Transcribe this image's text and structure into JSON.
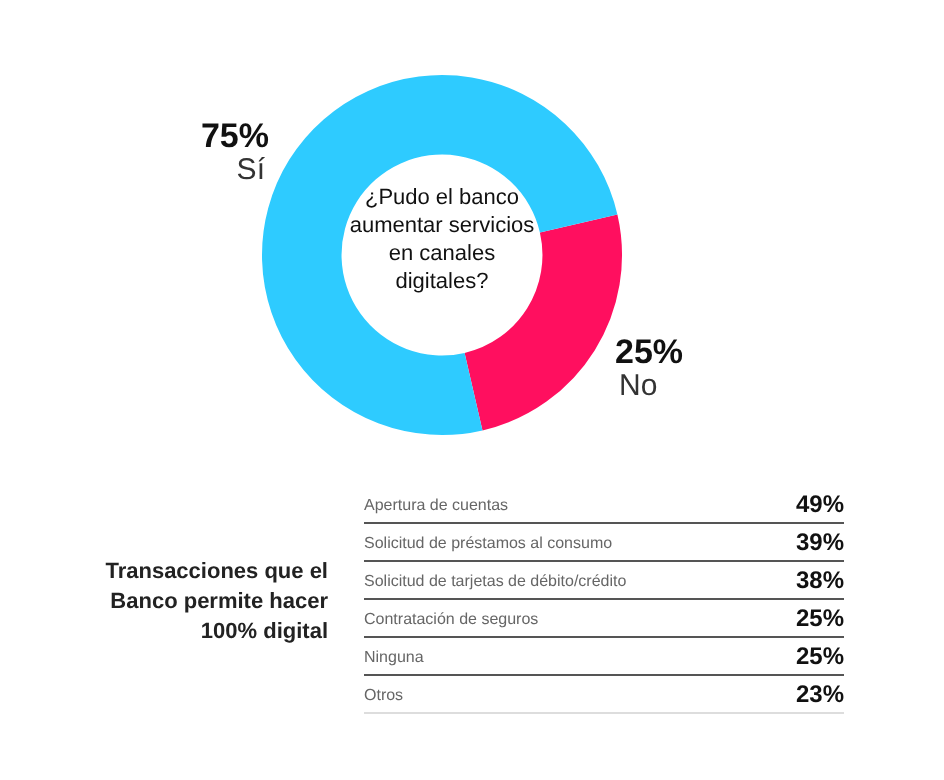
{
  "chart_data": [
    {
      "type": "donut",
      "title": "¿Pudo el banco aumentar servicios en canales digitales?",
      "categories": [
        "No",
        "Sí"
      ],
      "values": [
        25,
        75
      ],
      "colors": [
        "#ff0f5f",
        "#2ecbff"
      ],
      "value_labels": [
        "25%",
        "75%"
      ]
    },
    {
      "type": "other",
      "title": "Transacciones que el Banco permite hacer 100% digital",
      "categories": [
        "Apertura de cuentas",
        "Solicitud de préstamos al consumo",
        "Solicitud de tarjetas de débito/crédito",
        "Contratación de seguros",
        "Ninguna",
        "Otros"
      ],
      "value_labels": [
        "49%",
        "39%",
        "38%",
        "25%",
        "25%",
        "23%"
      ]
    }
  ]
}
